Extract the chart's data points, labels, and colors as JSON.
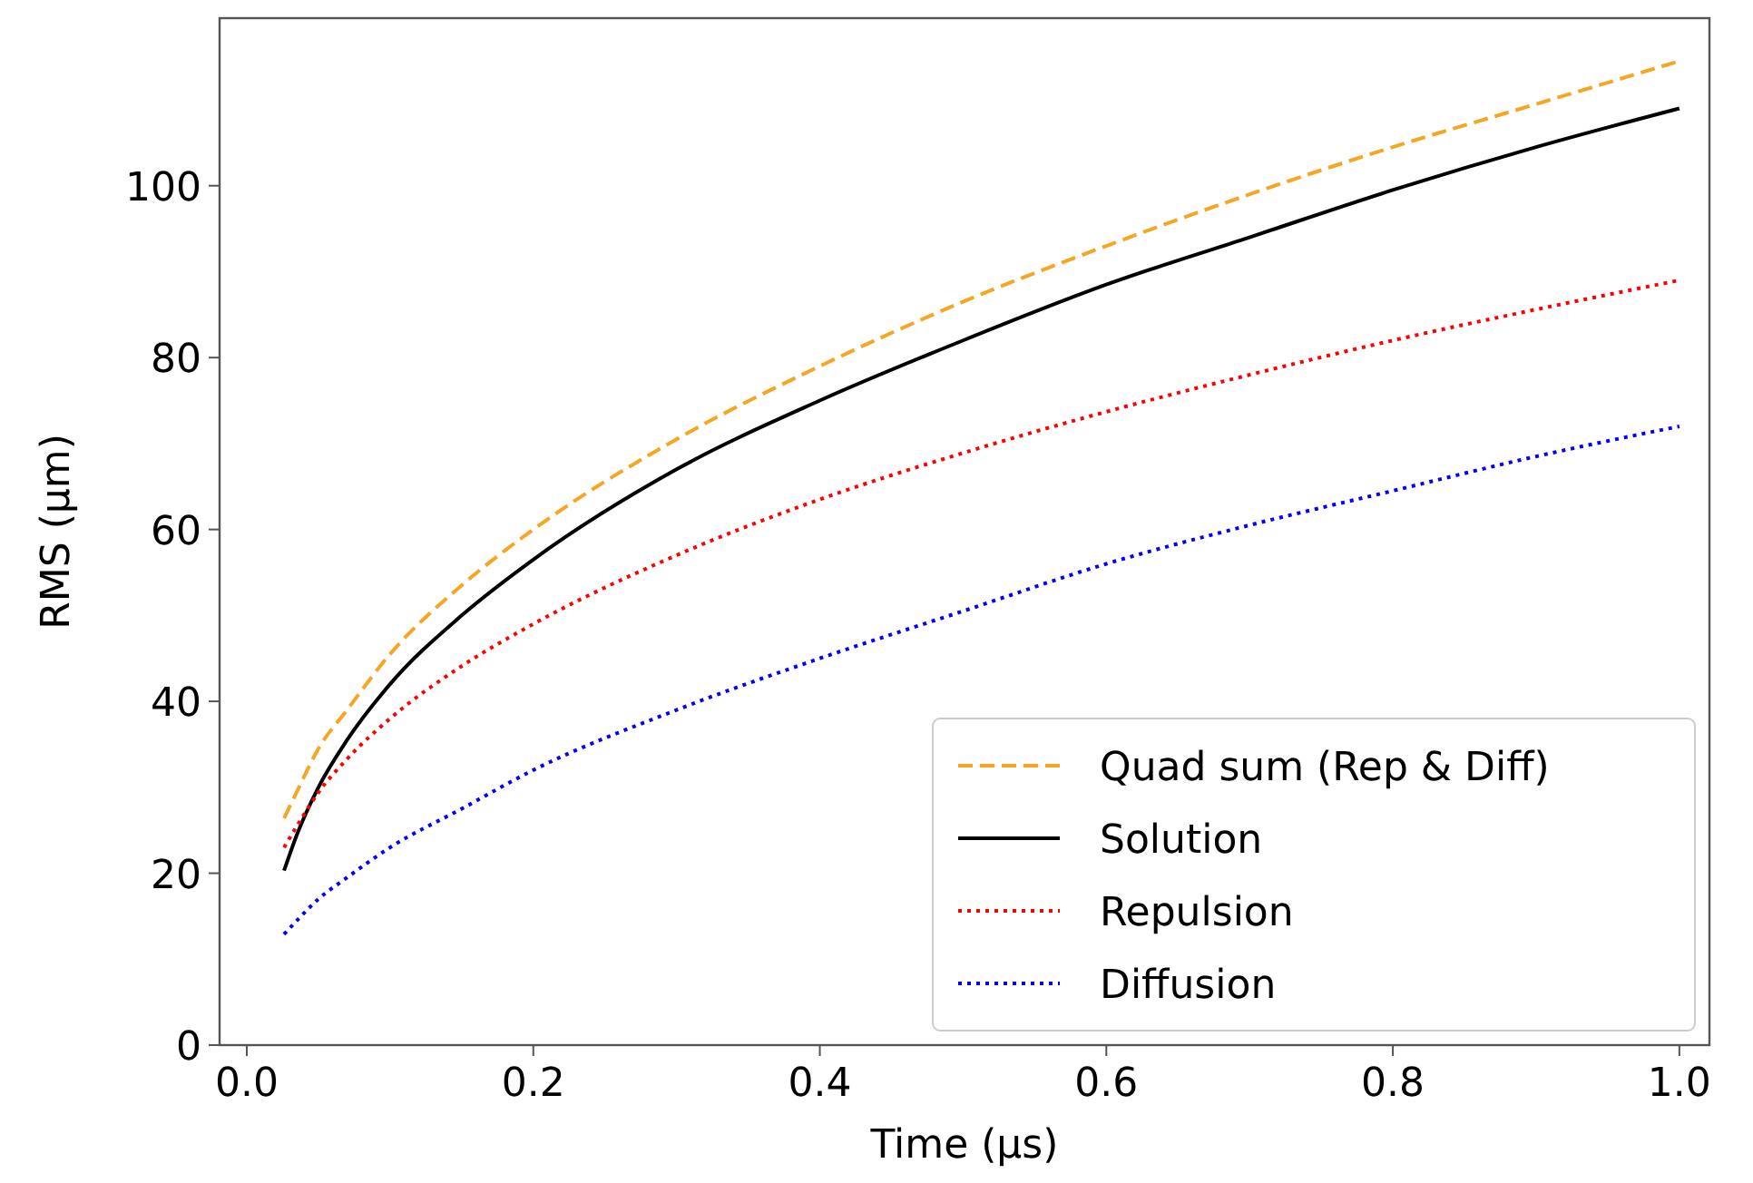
{
  "chart_data": {
    "type": "line",
    "xlabel": "Time (µs)",
    "ylabel": "RMS (µm)",
    "x": [
      0.026,
      0.035,
      0.05,
      0.07,
      0.1,
      0.15,
      0.2,
      0.3,
      0.4,
      0.5,
      0.6,
      0.7,
      0.8,
      0.9,
      1.0
    ],
    "series": [
      {
        "name": "Quad sum (Rep & Diff)",
        "color": "#f5a623",
        "line_style": "dashed",
        "values": [
          26.4,
          29.5,
          34.5,
          39,
          45.5,
          53.5,
          60,
          70.5,
          79,
          86.5,
          93,
          99,
          104.5,
          109.5,
          114.5
        ]
      },
      {
        "name": "Solution",
        "color": "#000000",
        "line_style": "solid",
        "values": [
          20.3,
          24.5,
          30,
          35.5,
          42,
          50,
          56.5,
          67,
          75,
          82,
          88.5,
          94,
          99.5,
          104.5,
          109
        ]
      },
      {
        "name": "Repulsion",
        "color": "#ff0000",
        "line_style": "dotted",
        "values": [
          23,
          25.5,
          29.4,
          33.3,
          38,
          44.1,
          49,
          57,
          63.5,
          68.9,
          73.7,
          78,
          82,
          85.6,
          89
        ]
      },
      {
        "name": "Diffusion",
        "color": "#0000ff",
        "line_style": "dotted",
        "values": [
          12.9,
          14.5,
          17,
          19.5,
          23,
          27.5,
          32,
          39,
          45,
          50.5,
          56,
          60.5,
          64.5,
          68.5,
          72
        ]
      }
    ],
    "xlim": [
      -0.019,
      1.021
    ],
    "ylim": [
      0,
      119.5
    ],
    "xticks": [
      {
        "value": 0,
        "label": "0.0"
      },
      0.2,
      0.4,
      0.6,
      0.8,
      {
        "value": 1,
        "label": "1.0"
      }
    ],
    "yticks": [
      0,
      20,
      40,
      60,
      80,
      100
    ],
    "grid": false,
    "legend": "bottom right"
  }
}
